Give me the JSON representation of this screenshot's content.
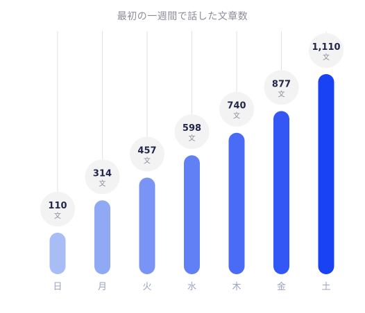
{
  "chart_data": {
    "type": "bar",
    "title": "最初の一週間で話した文章数",
    "categories": [
      "日",
      "月",
      "火",
      "水",
      "木",
      "金",
      "土"
    ],
    "values": [
      110,
      314,
      457,
      598,
      740,
      877,
      1110
    ],
    "value_labels": [
      "110",
      "314",
      "457",
      "598",
      "740",
      "877",
      "1,110"
    ],
    "unit_label": "文",
    "xlabel": "",
    "ylabel": "",
    "ylim": [
      0,
      1110
    ],
    "grid": false,
    "legend": "none",
    "colors": {
      "bar_start": "#a8bdf5",
      "bar_end": "#1a42f5",
      "guide_line": "#e2e2e6",
      "bubble": "#f3f3f4",
      "value_text": "#22264a",
      "unit_text": "#8c8c99",
      "tick_text": "#9aa2c6",
      "title_text": "#8c8c99"
    }
  }
}
